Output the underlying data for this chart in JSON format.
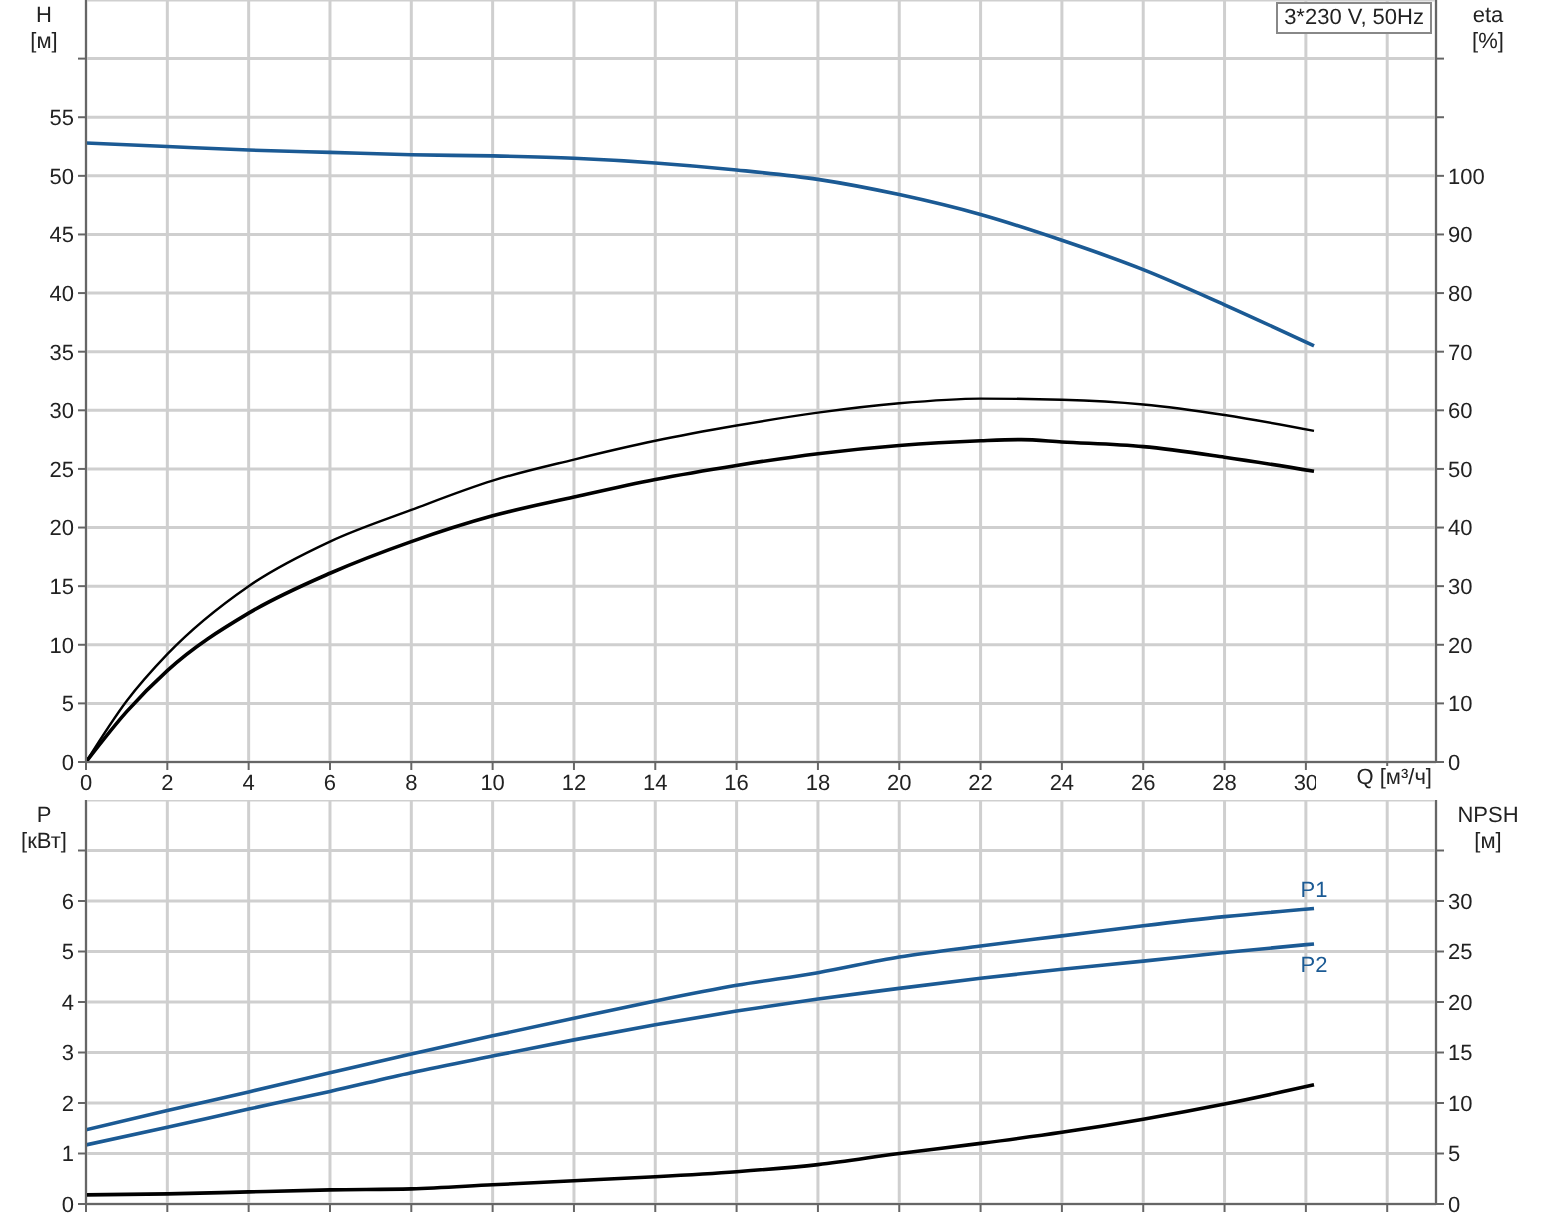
{
  "chart_data": [
    {
      "type": "line",
      "xlabel": "Q [м³/ч]",
      "ylabel": "H [м]",
      "y2label": "eta [%]",
      "annotations": [
        "3*230 V, 50Hz"
      ],
      "xlim": [
        0,
        33.2
      ],
      "xticks": [
        0,
        2,
        4,
        6,
        8,
        10,
        12,
        14,
        16,
        18,
        20,
        22,
        24,
        26,
        28,
        30,
        {
          "value": 32,
          "label": null
        }
      ],
      "ylim": [
        0,
        65
      ],
      "yticks": [
        0,
        5,
        10,
        15,
        20,
        25,
        30,
        35,
        40,
        45,
        50,
        55,
        {
          "value": 60,
          "label": null
        }
      ],
      "y2lim": [
        0,
        130
      ],
      "y2ticks": [
        0,
        10,
        20,
        30,
        40,
        50,
        60,
        70,
        80,
        90,
        100,
        {
          "value": 110,
          "label": null
        },
        {
          "value": 120,
          "label": null
        }
      ],
      "grid": true,
      "marker": "none",
      "line_style": "solid",
      "series": [
        {
          "color": "#1b5a94",
          "x": [
            0,
            2,
            4,
            6,
            8,
            10,
            12,
            14,
            16,
            18,
            20,
            22,
            24,
            26,
            28,
            30.2
          ],
          "values": [
            52.8,
            52.5,
            52.2,
            52.0,
            51.8,
            51.7,
            51.5,
            51.1,
            50.5,
            49.7,
            48.4,
            46.7,
            44.5,
            42.0,
            39.0,
            35.5
          ]
        },
        {
          "color": "#000000",
          "axis": "y2",
          "x": [
            0,
            1,
            2,
            4,
            6,
            8,
            10,
            12,
            14,
            16,
            18,
            20,
            22,
            24,
            26,
            28,
            30.2
          ],
          "values": [
            0,
            10.4,
            18.4,
            30,
            37.6,
            43,
            48,
            51.6,
            54.8,
            57.4,
            59.6,
            61.2,
            62,
            61.8,
            61,
            59.2,
            56.5
          ]
        },
        {
          "color": "#000000",
          "axis": "y2",
          "x": [
            0,
            1,
            2,
            4,
            6,
            8,
            10,
            12,
            14,
            16,
            18,
            20,
            22,
            23,
            24,
            26,
            28,
            30.2
          ],
          "values": [
            0,
            8.6,
            15.6,
            25.4,
            32.2,
            37.6,
            42,
            45.2,
            48.2,
            50.6,
            52.6,
            54,
            54.8,
            55,
            54.6,
            53.8,
            52,
            49.6
          ]
        }
      ]
    },
    {
      "type": "line",
      "ylabel": "P [кВт]",
      "y2label": "NPSH [м]",
      "annotations": [
        {
          "text": "P1",
          "x": 30.2,
          "y": 5.85
        },
        {
          "text": "P2",
          "x": 30.2,
          "y": 5.15
        }
      ],
      "xlim": [
        0,
        33.2
      ],
      "xticks": [
        0,
        2,
        4,
        6,
        8,
        10,
        12,
        14,
        16,
        18,
        20,
        22,
        24,
        26,
        28,
        30,
        32
      ],
      "ylim": [
        0,
        8
      ],
      "yticks": [
        0,
        1,
        2,
        3,
        4,
        5,
        6,
        {
          "value": 7,
          "label": null
        }
      ],
      "y2lim": [
        0,
        40
      ],
      "y2ticks": [
        0,
        5,
        10,
        15,
        20,
        25,
        30,
        {
          "value": 35,
          "label": null
        }
      ],
      "tick_labels": "y",
      "grid": true,
      "marker": "none",
      "line_style": "solid",
      "series": [
        {
          "color": "#1b5a94",
          "x": [
            0,
            2,
            4,
            6,
            8,
            10,
            12,
            14,
            16,
            18,
            20,
            22,
            24,
            26,
            28,
            30.2
          ],
          "values": [
            1.47,
            1.85,
            2.22,
            2.6,
            2.97,
            3.33,
            3.68,
            4.02,
            4.33,
            4.58,
            4.89,
            5.11,
            5.31,
            5.51,
            5.69,
            5.85
          ]
        },
        {
          "color": "#1b5a94",
          "x": [
            0,
            2,
            4,
            6,
            8,
            10,
            12,
            14,
            16,
            18,
            20,
            22,
            24,
            26,
            28,
            30.2
          ],
          "values": [
            1.17,
            1.52,
            1.88,
            2.23,
            2.6,
            2.93,
            3.25,
            3.55,
            3.82,
            4.06,
            4.27,
            4.47,
            4.65,
            4.81,
            4.98,
            5.15
          ]
        },
        {
          "color": "#000000",
          "axis": "y2",
          "x": [
            0,
            2,
            4,
            6,
            8,
            10,
            12,
            14,
            16,
            18,
            20,
            22,
            24,
            26,
            28,
            30.2
          ],
          "values": [
            0.9,
            1.0,
            1.2,
            1.4,
            1.5,
            1.9,
            2.3,
            2.7,
            3.2,
            3.9,
            5.0,
            6.0,
            7.1,
            8.4,
            9.9,
            11.8
          ]
        }
      ]
    }
  ]
}
